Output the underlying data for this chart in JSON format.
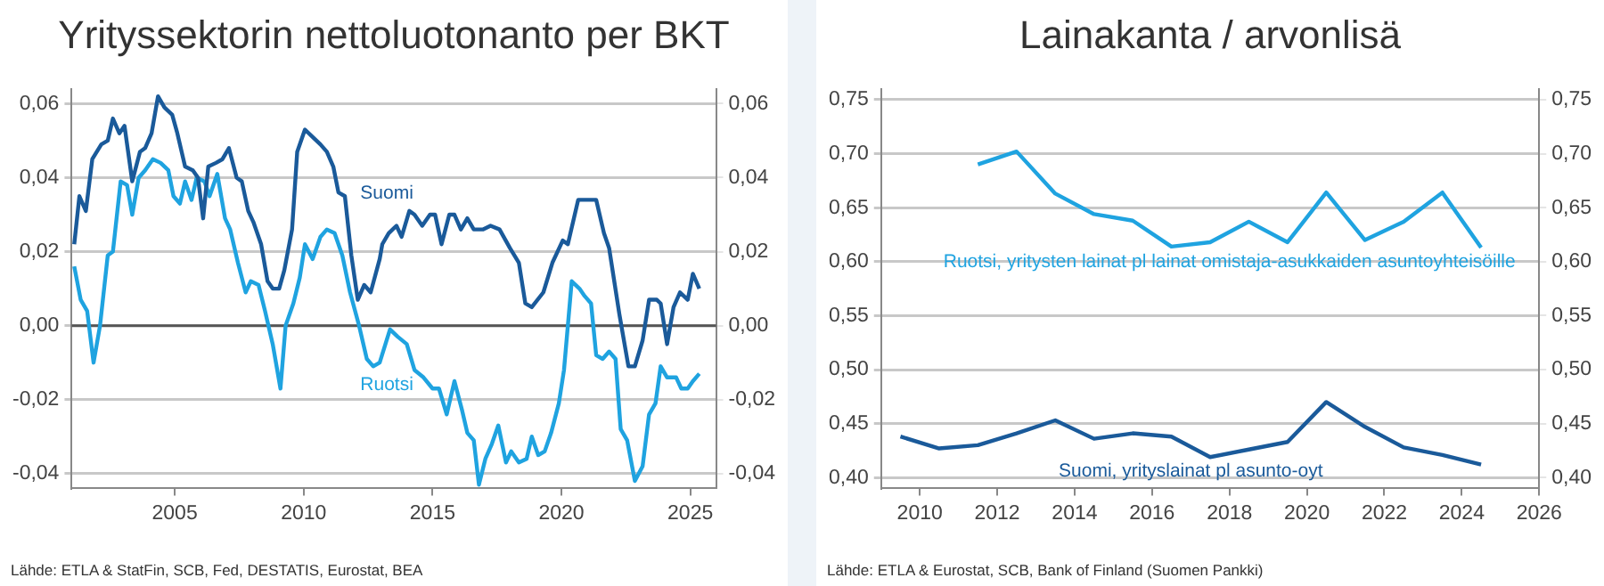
{
  "chart_data": [
    {
      "type": "line",
      "title": "Yrityssektorin nettoluotonanto per BKT",
      "xlim": [
        2001,
        2026
      ],
      "xticks": [
        2005,
        2010,
        2015,
        2020,
        2025
      ],
      "ylim": [
        -0.044,
        0.064
      ],
      "yticks": [
        {
          "value": -0.04,
          "label": "-0,04"
        },
        {
          "value": -0.02,
          "label": "-0,02"
        },
        {
          "value": 0,
          "label": "0,00"
        },
        {
          "value": 0.02,
          "label": "0,02"
        },
        {
          "value": 0.04,
          "label": "0,04"
        },
        {
          "value": 0.06,
          "label": "0,06"
        }
      ],
      "y2lim": [
        -0.044,
        0.064
      ],
      "y2ticks": [
        {
          "value": -0.04,
          "label": "-0,04"
        },
        {
          "value": -0.02,
          "label": "-0,02"
        },
        {
          "value": 0,
          "label": "0,00"
        },
        {
          "value": 0.02,
          "label": "0,02"
        },
        {
          "value": 0.04,
          "label": "0,04"
        },
        {
          "value": 0.06,
          "label": "0,06"
        }
      ],
      "grid": "y",
      "legend": false,
      "marker": "none",
      "ref_lines": [
        {
          "axis": "y",
          "value": 0,
          "color": "#555555"
        }
      ],
      "series": [
        {
          "name": "Suomi",
          "color": "#1a5a9a",
          "x": [
            2001.1,
            2001.3,
            2001.55,
            2001.8,
            2002.15,
            2002.4,
            2002.6,
            2002.85,
            2003.05,
            2003.35,
            2003.65,
            2003.85,
            2004.1,
            2004.35,
            2004.6,
            2004.9,
            2005.1,
            2005.4,
            2005.7,
            2005.9,
            2006.1,
            2006.3,
            2006.6,
            2006.85,
            2007.1,
            2007.4,
            2007.6,
            2007.85,
            2008.05,
            2008.35,
            2008.6,
            2008.8,
            2009.05,
            2009.25,
            2009.55,
            2009.75,
            2010.05,
            2010.35,
            2010.65,
            2010.9,
            2011.15,
            2011.35,
            2011.6,
            2011.85,
            2012.1,
            2012.35,
            2012.6,
            2012.95,
            2013.05,
            2013.3,
            2013.6,
            2013.8,
            2014.1,
            2014.3,
            2014.6,
            2014.9,
            2015.1,
            2015.35,
            2015.65,
            2015.85,
            2016.1,
            2016.35,
            2016.6,
            2016.95,
            2017.25,
            2017.6,
            2018.0,
            2018.35,
            2018.6,
            2018.85,
            2019.3,
            2019.65,
            2020.05,
            2020.25,
            2020.65,
            2021.0,
            2021.35,
            2021.65,
            2021.85,
            2022.25,
            2022.6,
            2022.85,
            2023.15,
            2023.4,
            2023.7,
            2023.85,
            2024.1,
            2024.35,
            2024.6,
            2024.9,
            2025.1,
            2025.35
          ],
          "values": [
            0.022,
            0.035,
            0.031,
            0.045,
            0.049,
            0.05,
            0.056,
            0.052,
            0.054,
            0.039,
            0.047,
            0.048,
            0.052,
            0.062,
            0.059,
            0.057,
            0.052,
            0.043,
            0.042,
            0.04,
            0.029,
            0.043,
            0.044,
            0.045,
            0.048,
            0.04,
            0.039,
            0.031,
            0.028,
            0.022,
            0.012,
            0.01,
            0.01,
            0.015,
            0.026,
            0.047,
            0.053,
            0.051,
            0.049,
            0.047,
            0.043,
            0.036,
            0.035,
            0.019,
            0.007,
            0.011,
            0.009,
            0.018,
            0.022,
            0.025,
            0.027,
            0.024,
            0.031,
            0.03,
            0.027,
            0.03,
            0.03,
            0.022,
            0.03,
            0.03,
            0.026,
            0.029,
            0.026,
            0.026,
            0.027,
            0.026,
            0.021,
            0.017,
            0.006,
            0.005,
            0.009,
            0.017,
            0.023,
            0.022,
            0.034,
            0.034,
            0.034,
            0.025,
            0.021,
            0.003,
            -0.011,
            -0.011,
            -0.004,
            0.007,
            0.007,
            0.006,
            -0.005,
            0.005,
            0.009,
            0.007,
            0.014,
            0.01
          ]
        },
        {
          "name": "Ruotsi",
          "color": "#1fa3e0",
          "x": [
            2001.1,
            2001.35,
            2001.6,
            2001.85,
            2002.1,
            2002.4,
            2002.6,
            2002.9,
            2003.15,
            2003.35,
            2003.6,
            2003.85,
            2004.15,
            2004.45,
            2004.75,
            2004.95,
            2005.2,
            2005.4,
            2005.65,
            2005.85,
            2006.15,
            2006.35,
            2006.65,
            2006.95,
            2007.15,
            2007.45,
            2007.75,
            2007.95,
            2008.25,
            2008.5,
            2008.8,
            2009.1,
            2009.3,
            2009.6,
            2009.85,
            2010.05,
            2010.35,
            2010.65,
            2010.9,
            2011.2,
            2011.5,
            2011.8,
            2012.15,
            2012.45,
            2012.7,
            2012.95,
            2013.35,
            2013.65,
            2014.0,
            2014.3,
            2014.65,
            2015.0,
            2015.25,
            2015.55,
            2015.85,
            2016.15,
            2016.35,
            2016.6,
            2016.8,
            2017.05,
            2017.3,
            2017.55,
            2017.85,
            2018.05,
            2018.35,
            2018.65,
            2018.85,
            2019.1,
            2019.35,
            2019.6,
            2019.9,
            2020.1,
            2020.4,
            2020.7,
            2020.9,
            2021.15,
            2021.35,
            2021.6,
            2021.85,
            2022.1,
            2022.3,
            2022.55,
            2022.85,
            2023.15,
            2023.4,
            2023.65,
            2023.85,
            2024.1,
            2024.45,
            2024.65,
            2024.9,
            2025.1,
            2025.35
          ],
          "values": [
            0.016,
            0.007,
            0.004,
            -0.01,
            0.0,
            0.019,
            0.02,
            0.039,
            0.038,
            0.03,
            0.04,
            0.042,
            0.045,
            0.044,
            0.042,
            0.035,
            0.033,
            0.039,
            0.034,
            0.04,
            0.039,
            0.035,
            0.041,
            0.029,
            0.026,
            0.017,
            0.009,
            0.012,
            0.011,
            0.004,
            -0.005,
            -0.017,
            0.0,
            0.006,
            0.013,
            0.022,
            0.018,
            0.024,
            0.026,
            0.025,
            0.019,
            0.009,
            0.0,
            -0.009,
            -0.011,
            -0.01,
            -0.001,
            -0.003,
            -0.005,
            -0.012,
            -0.014,
            -0.017,
            -0.017,
            -0.024,
            -0.015,
            -0.023,
            -0.029,
            -0.031,
            -0.043,
            -0.036,
            -0.032,
            -0.027,
            -0.037,
            -0.034,
            -0.037,
            -0.036,
            -0.03,
            -0.035,
            -0.034,
            -0.029,
            -0.021,
            -0.012,
            0.012,
            0.01,
            0.008,
            0.006,
            -0.008,
            -0.009,
            -0.007,
            -0.009,
            -0.028,
            -0.031,
            -0.042,
            -0.038,
            -0.024,
            -0.021,
            -0.011,
            -0.014,
            -0.014,
            -0.017,
            -0.017,
            -0.015,
            -0.013
          ]
        }
      ],
      "annotations": [
        "Lähde: ETLA & StatFin, SCB, Fed, DESTATIS, Eurostat, BEA"
      ]
    },
    {
      "type": "line",
      "title": "Lainakanta / arvonlisä",
      "xlim": [
        2009,
        2026
      ],
      "xticks": [
        2010,
        2012,
        2014,
        2016,
        2018,
        2020,
        2022,
        2024,
        2026
      ],
      "ylim": [
        0.39,
        0.76
      ],
      "yticks": [
        {
          "value": 0.4,
          "label": "0,40"
        },
        {
          "value": 0.45,
          "label": "0,45"
        },
        {
          "value": 0.5,
          "label": "0,50"
        },
        {
          "value": 0.55,
          "label": "0,55"
        },
        {
          "value": 0.6,
          "label": "0,60"
        },
        {
          "value": 0.65,
          "label": "0,65"
        },
        {
          "value": 0.7,
          "label": "0,70"
        },
        {
          "value": 0.75,
          "label": "0,75"
        }
      ],
      "y2lim": [
        0.39,
        0.76
      ],
      "y2ticks": [
        {
          "value": 0.4,
          "label": "0,40"
        },
        {
          "value": 0.45,
          "label": "0,45"
        },
        {
          "value": 0.5,
          "label": "0,50"
        },
        {
          "value": 0.55,
          "label": "0,55"
        },
        {
          "value": 0.6,
          "label": "0,60"
        },
        {
          "value": 0.65,
          "label": "0,65"
        },
        {
          "value": 0.7,
          "label": "0,70"
        },
        {
          "value": 0.75,
          "label": "0,75"
        }
      ],
      "grid": "y",
      "legend": false,
      "marker": "none",
      "series": [
        {
          "name": "Ruotsi, yritysten lainat pl lainat omistaja-asukkaiden asuntoyhteisöille",
          "color": "#1fa3e0",
          "x": [
            2011.5,
            2012.5,
            2013.5,
            2014.5,
            2015.5,
            2016.5,
            2017.5,
            2018.5,
            2019.5,
            2020.5,
            2021.5,
            2022.5,
            2023.5,
            2024.5
          ],
          "values": [
            0.69,
            0.702,
            0.663,
            0.644,
            0.638,
            0.614,
            0.618,
            0.637,
            0.618,
            0.664,
            0.62,
            0.637,
            0.664,
            0.613
          ]
        },
        {
          "name": "Suomi, yrityslainat pl asunto-oyt",
          "color": "#1a5a9a",
          "x": [
            2009.5,
            2010.5,
            2011.5,
            2012.5,
            2013.5,
            2014.5,
            2015.5,
            2016.5,
            2017.5,
            2018.5,
            2019.5,
            2020.5,
            2021.5,
            2022.5,
            2023.5,
            2024.5
          ],
          "values": [
            0.438,
            0.427,
            0.43,
            0.441,
            0.453,
            0.436,
            0.441,
            0.438,
            0.419,
            0.426,
            0.433,
            0.47,
            0.447,
            0.428,
            0.421,
            0.412
          ]
        }
      ],
      "annotations": [
        "Lähde: ETLA & Eurostat, SCB, Bank of Finland (Suomen Pankki)"
      ]
    }
  ]
}
